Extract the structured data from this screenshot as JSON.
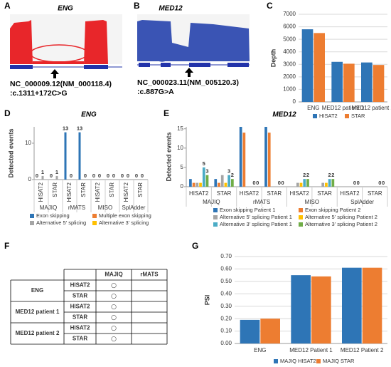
{
  "sashimi": [
    {
      "panel": "A",
      "title": "ENG",
      "variant": [
        "NC_000009.12(NM_000118.4)",
        ":c.1311+172C>G"
      ]
    },
    {
      "panel": "B",
      "title": "MED12",
      "variant": [
        "NC_000023.11(NM_005120.3)",
        ":c.887G>A"
      ]
    }
  ],
  "table": {
    "panel": "F",
    "columns": [
      "MAJIQ",
      "rMATS"
    ],
    "groups": [
      {
        "sample": "ENG",
        "rows": [
          [
            "HISAT2",
            "○"
          ],
          [
            "STAR",
            "○"
          ]
        ]
      },
      {
        "sample": "MED12 patient 1",
        "rows": [
          [
            "HISAT2",
            "○"
          ],
          [
            "STAR",
            "○"
          ]
        ]
      },
      {
        "sample": "MED12 patient 2",
        "rows": [
          [
            "HISAT2",
            "○"
          ],
          [
            "STAR",
            "○"
          ]
        ]
      }
    ]
  },
  "chart_data": [
    {
      "type": "bar",
      "panel": "C",
      "y_label": "Depth",
      "categories": [
        "ENG",
        "MED12 patient 1",
        "MED12 patient 2"
      ],
      "series": [
        {
          "name": "HISAT2",
          "color": "#2e75b6",
          "values": [
            5800,
            3200,
            3150
          ]
        },
        {
          "name": "STAR",
          "color": "#ed7d31",
          "values": [
            5500,
            3050,
            2950
          ]
        }
      ],
      "ylim": [
        0,
        7000
      ],
      "yticks": [
        0,
        1000,
        2000,
        3000,
        4000,
        5000,
        6000,
        7000
      ],
      "grid": true
    },
    {
      "type": "bar",
      "panel": "D",
      "title": "ENG",
      "y_label": "Detected events",
      "categories": [
        "HISAT2",
        "STAR",
        "HISAT2",
        "STAR",
        "HISAT2",
        "STAR",
        "HISAT2",
        "STAR"
      ],
      "groups": [
        "MAJIQ",
        "rMATS",
        "MISO",
        "SplAdder"
      ],
      "series": [
        {
          "name": "Exon skipping",
          "color": "#2e75b6",
          "values": [
            0,
            0,
            13,
            13,
            0,
            0,
            0,
            0
          ],
          "value_labels": [
            "0",
            "0",
            "13",
            "13",
            "0",
            "0",
            "0",
            "0"
          ]
        },
        {
          "name": "Multiple exon skipping",
          "color": "#ed7d31",
          "values": [
            0,
            0,
            0,
            0,
            0,
            0,
            0,
            0
          ]
        },
        {
          "name": "Alternative 5' splicing",
          "color": "#a5a5a5",
          "values": [
            1,
            1,
            0,
            0,
            0,
            0,
            0,
            0
          ],
          "value_labels": [
            "1",
            "1",
            "0",
            "0",
            "0",
            "0",
            "0",
            "0"
          ]
        },
        {
          "name": "Alternative 3' splicing",
          "color": "#ffc000",
          "values": [
            0,
            0,
            0,
            0,
            0,
            0,
            0,
            0
          ]
        }
      ],
      "ylim": [
        0,
        14.5
      ],
      "yticks": [
        0,
        10
      ],
      "grid": false
    },
    {
      "type": "bar",
      "panel": "E",
      "title": "MED12",
      "y_label": "Detected events",
      "categories": [
        "HISAT2",
        "STAR",
        "HISAT2",
        "STAR",
        "HISAT2",
        "STAR",
        "HISAT2",
        "STAR"
      ],
      "groups": [
        "MAJIQ",
        "rMATS",
        "MISO",
        "SplAdder"
      ],
      "series": [
        {
          "name": "Exon skipping Patient 1",
          "color": "#2e75b6",
          "values": [
            2,
            2,
            15.5,
            15.5,
            0,
            0,
            0,
            0
          ]
        },
        {
          "name": "Exon skipping Patient 2",
          "color": "#ed7d31",
          "values": [
            1,
            1,
            14,
            14,
            0,
            0,
            0,
            0
          ]
        },
        {
          "name": "Alternative 5' splicing Patient 1",
          "color": "#a5a5a5",
          "values": [
            1,
            3,
            0,
            0,
            1,
            1,
            0,
            0
          ]
        },
        {
          "name": "Alternative 5' splicing Patient 2",
          "color": "#ffc000",
          "values": [
            1,
            1,
            0,
            0,
            1,
            1,
            0,
            0
          ]
        },
        {
          "name": "Alternative 3' splicing Patient 1",
          "color": "#4bacc6",
          "values": [
            5,
            3,
            0,
            0,
            2,
            2,
            0,
            0
          ],
          "value_labels": [
            "5",
            "3",
            "0",
            "0",
            "2",
            "2",
            "0",
            "0"
          ]
        },
        {
          "name": "Alternative 3' splicing Patient 2",
          "color": "#70ad47",
          "values": [
            3,
            2,
            0,
            0,
            2,
            2,
            0,
            0
          ],
          "value_labels": [
            "3",
            "2",
            "0",
            "0",
            "2",
            "2",
            "0",
            "0"
          ]
        }
      ],
      "ylim": [
        0,
        15.5
      ],
      "yticks": [
        0,
        5,
        10,
        15
      ],
      "grid": false
    },
    {
      "type": "bar",
      "panel": "G",
      "y_label": "PSI",
      "categories": [
        "ENG",
        "MED12 Patient 1",
        "MED12 Patient 2"
      ],
      "series": [
        {
          "name": "MAJIQ HISAT2",
          "color": "#2e75b6",
          "values": [
            0.19,
            0.55,
            0.61
          ]
        },
        {
          "name": "MAJIQ STAR",
          "color": "#ed7d31",
          "values": [
            0.2,
            0.54,
            0.61
          ]
        }
      ],
      "ylim": [
        0,
        0.7
      ],
      "yticks": [
        {
          "value": 0,
          "label": "0.00"
        },
        {
          "value": 0.1,
          "label": "0.10"
        },
        {
          "value": 0.2,
          "label": "0.20"
        },
        {
          "value": 0.3,
          "label": "0.30"
        },
        {
          "value": 0.4,
          "label": "0.40"
        },
        {
          "value": 0.5,
          "label": "0.50"
        },
        {
          "value": 0.6,
          "label": "0.60"
        },
        {
          "value": 0.7,
          "label": "0.70"
        }
      ],
      "grid": true
    }
  ]
}
